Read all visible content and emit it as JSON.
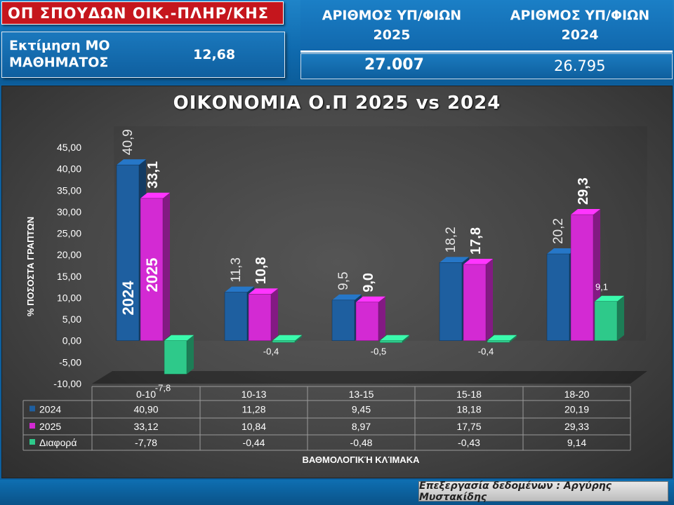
{
  "header": {
    "title": "ΟΠ ΣΠΟΥΔΩΝ ΟΙΚ.-ΠΛΗΡ/ΚΗΣ",
    "estimate_label": "Εκτίμηση ΜΟ ΜΑΘΗΜΑΤΟΣ",
    "estimate_value": "12,68",
    "stats": {
      "col_2025_label": "ΑΡΙΘΜΟΣ ΥΠ/ΦΙΩΝ\n2025",
      "col_2024_label": "ΑΡΙΘΜΟΣ ΥΠ/ΦΙΩΝ\n2024",
      "value_2025": "27.007",
      "value_2024": "26.795"
    }
  },
  "footer": {
    "credit": "Επεξεργασία δεδομένων : Αργύρης Μυστακίδης"
  },
  "colors": {
    "series_2024": "#1e5fa0",
    "series_2025": "#d32ad3",
    "series_diff": "#2ec98a",
    "chart_bg": "#4a4a4a"
  },
  "chart_data": {
    "type": "bar",
    "title": "ΟΙΚΟΝΟΜΙΑ Ο.Π 2025 vs 2024",
    "xlabel": "ΒΑΘΜΟΛΟΓΙΚΉ ΚΛΊΜΑΚΑ",
    "ylabel": "% ΠΟΣΟΣΤΑ ΓΡΑΠΤΩΝ",
    "categories": [
      "0-10",
      "10-13",
      "13-15",
      "15-18",
      "18-20"
    ],
    "yticks": [
      "45,00",
      "40,00",
      "35,00",
      "30,00",
      "25,00",
      "20,00",
      "15,00",
      "10,00",
      "5,00",
      "0,00",
      "-5,00",
      "-10,00"
    ],
    "ylim": [
      -10,
      45
    ],
    "grid": false,
    "in_bar_labels": [
      "2024",
      "2025"
    ],
    "series": [
      {
        "name": "2024",
        "values": [
          40.9,
          11.28,
          9.45,
          18.18,
          20.19
        ],
        "bar_labels": [
          "40,9",
          "11,3",
          "9,5",
          "18,2",
          "20,2"
        ],
        "table_values": [
          "40,90",
          "11,28",
          "9,45",
          "18,18",
          "20,19"
        ]
      },
      {
        "name": "2025",
        "values": [
          33.12,
          10.84,
          8.97,
          17.75,
          29.33
        ],
        "bar_labels": [
          "33,1",
          "10,8",
          "9,0",
          "17,8",
          "29,3"
        ],
        "table_values": [
          "33,12",
          "10,84",
          "8,97",
          "17,75",
          "29,33"
        ]
      },
      {
        "name": "Διαφορά",
        "values": [
          -7.78,
          -0.44,
          -0.48,
          -0.43,
          9.14
        ],
        "bar_labels": [
          "-7,8",
          "-0,4",
          "-0,5",
          "-0,4",
          "9,1"
        ],
        "table_values": [
          "-7,78",
          "-0,44",
          "-0,48",
          "-0,43",
          "9,14"
        ]
      }
    ]
  }
}
